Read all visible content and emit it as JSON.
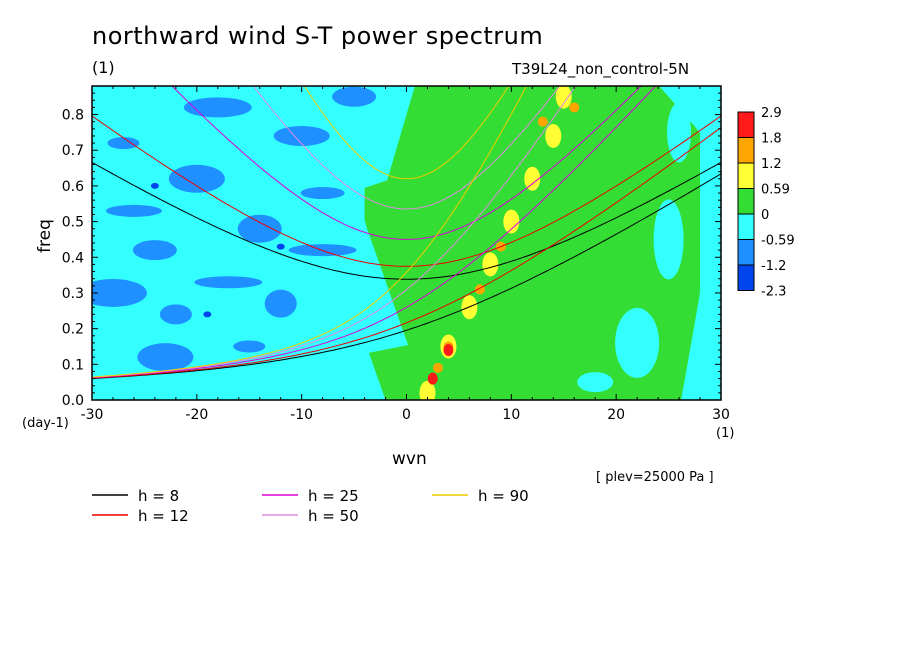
{
  "chart_data": {
    "type": "heatmap",
    "title": "northward wind S-T power spectrum",
    "case_label": "T39L24_non_control-5N",
    "ylabel": "freq",
    "xlabel": "wvn",
    "y_unit_label": "(1)",
    "x_unit_left": "(day-1)",
    "x_unit_right": "(1)",
    "footnote": "[ plev=25000 Pa ]",
    "xlim": [
      -30,
      30
    ],
    "ylim": [
      0,
      0.88
    ],
    "x_ticks": [
      "-30",
      "-20",
      "-10",
      "0",
      "10",
      "20",
      "30"
    ],
    "x_tick_values": [
      -30,
      -20,
      -10,
      0,
      10,
      20,
      30
    ],
    "y_ticks": [
      "0.0",
      "0.1",
      "0.2",
      "0.3",
      "0.4",
      "0.5",
      "0.6",
      "0.7",
      "0.8"
    ],
    "y_tick_values": [
      0,
      0.1,
      0.2,
      0.3,
      0.4,
      0.5,
      0.6,
      0.7,
      0.8
    ],
    "colorbar": {
      "labels": [
        "2.9",
        "1.8",
        "1.2",
        "0.59",
        "0",
        "-0.59",
        "-1.2",
        "-2.3"
      ],
      "colors": [
        "#ff1a1a",
        "#ffa500",
        "#ffff33",
        "#33dd33",
        "#33ffff",
        "#1e90ff",
        "#0044ee"
      ]
    },
    "regions": {
      "background_level_color": "#33ffff",
      "green_region_boundary_wvn": -5,
      "green_region_right_wvn": 28
    },
    "series": [
      {
        "name": "h = 8",
        "color": "#000000",
        "equivalent_depth": 8
      },
      {
        "name": "h = 12",
        "color": "#ee0000",
        "equivalent_depth": 12
      },
      {
        "name": "h = 25",
        "color": "#dd00dd",
        "equivalent_depth": 25
      },
      {
        "name": "h = 50",
        "color": "#e08ae0",
        "equivalent_depth": 50
      },
      {
        "name": "h = 90",
        "color": "#eecc00",
        "equivalent_depth": 90
      }
    ]
  }
}
